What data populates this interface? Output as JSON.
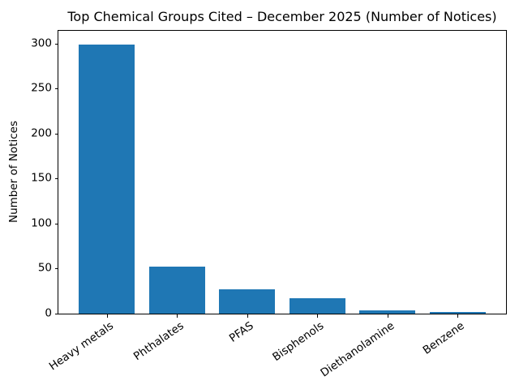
{
  "chart_data": {
    "type": "bar",
    "title": "Top Chemical Groups Cited – December 2025 (Number of Notices)",
    "categories": [
      "Heavy metals",
      "Phthalates",
      "PFAS",
      "Bisphenols",
      "Diethanolamine",
      "Benzene"
    ],
    "values": [
      299,
      52,
      27,
      17,
      4,
      2
    ],
    "xlabel": "",
    "ylabel": "Number of Notices",
    "yticks": [
      0,
      50,
      100,
      150,
      200,
      250,
      300
    ],
    "ylim": [
      0,
      314
    ],
    "bar_color": "#1f77b4",
    "background_color": "#ffffff",
    "text_color": "#000000",
    "grid": false,
    "legend": null,
    "xtick_rotation_deg": 35
  }
}
